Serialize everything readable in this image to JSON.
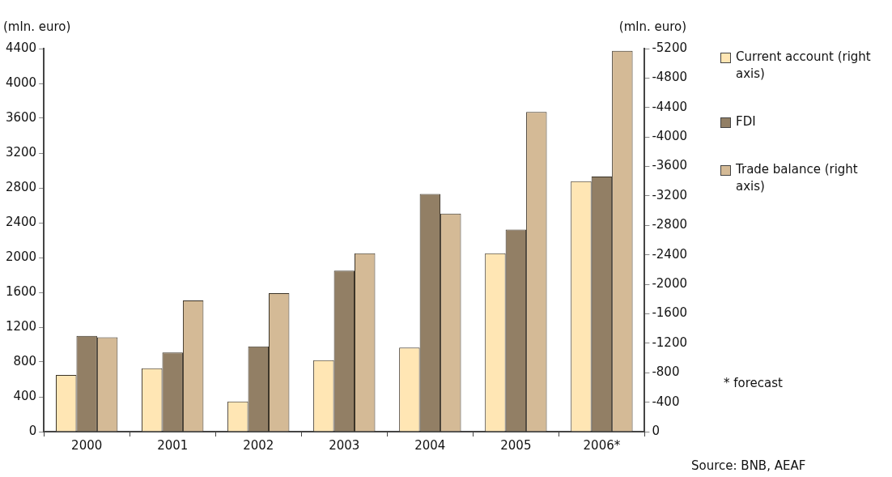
{
  "chart_data": {
    "type": "bar",
    "ylabel": "(mln. euro)",
    "y2label": "(mln. euro)",
    "categories": [
      "2000",
      "2001",
      "2002",
      "2003",
      "2004",
      "2005",
      "2006*"
    ],
    "series": [
      {
        "name": "Current account (right axis)",
        "color": "#ffe6b4",
        "axis": "y2",
        "values": [
          -770,
          -860,
          -410,
          -970,
          -1140,
          -2420,
          -3400
        ]
      },
      {
        "name": "FDI",
        "color": "#927f65",
        "values": [
          1100,
          910,
          980,
          1850,
          2730,
          2320,
          2930
        ]
      },
      {
        "name": "Trade balance (right axis)",
        "color": "#d4ba96",
        "axis": "y2",
        "values": [
          -1280,
          -1780,
          -1880,
          -2420,
          -2960,
          -4340,
          -5170
        ]
      }
    ],
    "ylim": [
      0,
      4400
    ],
    "yticks": [
      0,
      400,
      800,
      1200,
      1600,
      2000,
      2400,
      2800,
      3200,
      3600,
      4000,
      4400
    ],
    "y2lim": [
      0,
      -5200
    ],
    "y2ticks": [
      0,
      -400,
      -800,
      -1200,
      -1600,
      -2000,
      -2400,
      -2800,
      -3200,
      -3600,
      -4000,
      -4400,
      -4800,
      -5200
    ],
    "grid": false,
    "legend": "right",
    "annotations": [
      "* forecast",
      "Source: BNB, AEAF"
    ]
  }
}
